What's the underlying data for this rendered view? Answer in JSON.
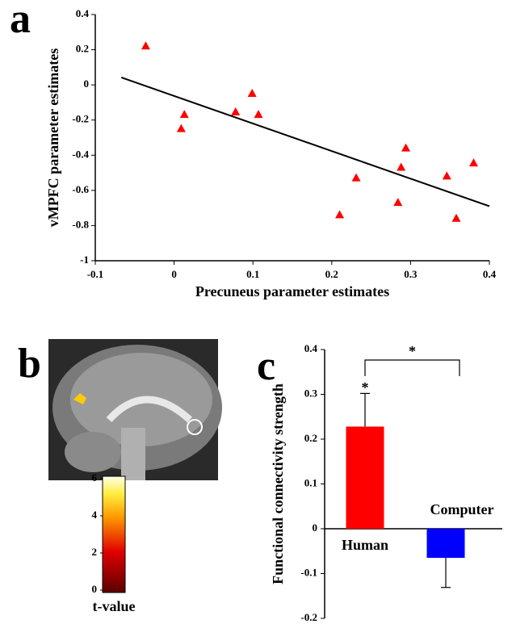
{
  "chart_data": [
    {
      "type": "scatter",
      "panel_label": "a",
      "x_label": "Precuneus parameter estimates",
      "y_label": "vMPFC parameter estimates",
      "x": [
        -0.036,
        0.013,
        0.009,
        0.078,
        0.099,
        0.107,
        0.231,
        0.21,
        0.284,
        0.288,
        0.294,
        0.346,
        0.358,
        0.38
      ],
      "y": [
        0.22,
        -0.17,
        -0.25,
        -0.155,
        -0.05,
        -0.17,
        -0.53,
        -0.74,
        -0.67,
        -0.47,
        -0.36,
        -0.52,
        -0.76,
        -0.445
      ],
      "color": "#ff0000",
      "fit": {
        "x": [
          -0.067,
          0.4
        ],
        "y": [
          0.042,
          -0.69
        ],
        "color": "#000000"
      },
      "xlim": [
        -0.1,
        0.4
      ],
      "xticks": [
        -0.1,
        0,
        0.1,
        0.2,
        0.3,
        0.4
      ],
      "ylim": [
        -1,
        0.4
      ],
      "yticks": [
        0.4,
        0.2,
        0,
        -0.2,
        -0.4,
        -0.6,
        -0.8,
        -1
      ]
    },
    {
      "type": "colorbar",
      "panel_label": "b",
      "label": "t-value",
      "ylim": [
        0,
        6
      ],
      "yticks": [
        0,
        2,
        4,
        6
      ]
    },
    {
      "type": "bar",
      "panel_label": "c",
      "y_label": "Functional connectivity strength",
      "categories": [
        "Human",
        "Computer"
      ],
      "series": [
        {
          "values": [
            0.228,
            -0.065
          ],
          "errors": [
            0.074,
            0.066
          ],
          "colors": [
            "#ff0000",
            "#0000ff"
          ]
        }
      ],
      "annotations": [
        "*",
        "*"
      ],
      "ylim": [
        -0.2,
        0.4
      ],
      "yticks": [
        0.4,
        0.3,
        0.2,
        0.1,
        0,
        -0.1,
        -0.2
      ]
    }
  ]
}
